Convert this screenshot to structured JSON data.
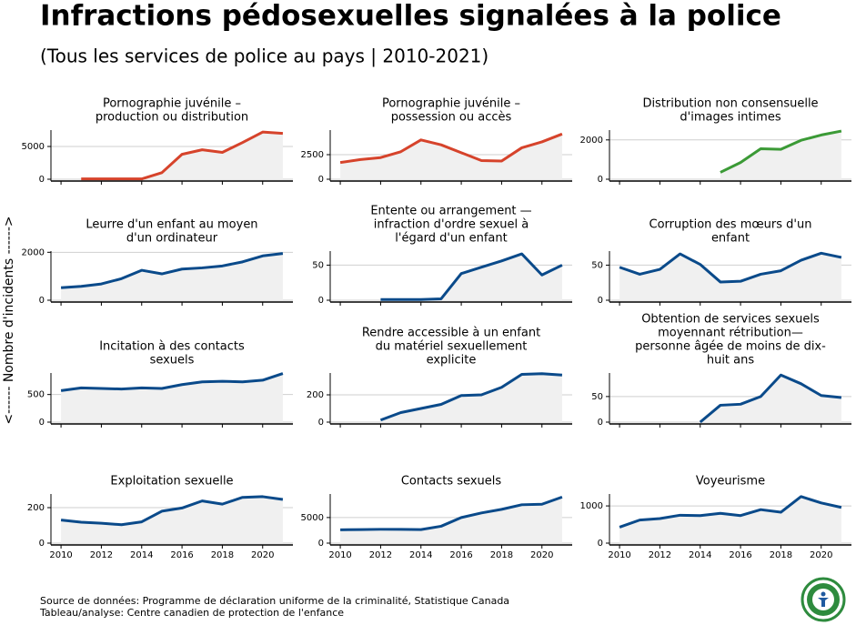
{
  "title": "Infractions pédosexuelles signalées à la police",
  "subtitle": "(Tous les services de police au pays | 2010-2021)",
  "y_label": "<------ Nombre d'incidents ------>",
  "source": [
    "Source de données: Programme de déclaration uniforme de la criminalité, Statistique Canada",
    "Tableau/analyse: Centre canadien de protection de l'enfance"
  ],
  "chart_data": [
    {
      "type": "line",
      "title": [
        "Pornographie juvénile –",
        "production ou distribution"
      ],
      "color": "#d6432b",
      "x": [
        2010,
        2011,
        2012,
        2013,
        2014,
        2015,
        2016,
        2017,
        2018,
        2019,
        2020,
        2021
      ],
      "values": [
        null,
        50,
        50,
        50,
        50,
        1000,
        3800,
        4500,
        4100,
        5600,
        7200,
        7000
      ],
      "xlim": [
        2009.5,
        2021.5
      ],
      "xticks": [
        2010,
        2012,
        2014,
        2016,
        2018,
        2020
      ],
      "ylim": [
        0,
        7500
      ],
      "yticks": [
        0,
        5000
      ],
      "grid": true
    },
    {
      "type": "line",
      "title": [
        "Pornographie juvénile –",
        "possession ou accès"
      ],
      "color": "#d6432b",
      "x": [
        2010,
        2011,
        2012,
        2013,
        2014,
        2015,
        2016,
        2017,
        2018,
        2019,
        2020,
        2021
      ],
      "values": [
        1700,
        2000,
        2200,
        2800,
        4000,
        3500,
        2700,
        1900,
        1850,
        3200,
        3800,
        4600
      ],
      "xlim": [
        2009.5,
        2021.5
      ],
      "xticks": [
        2010,
        2012,
        2014,
        2016,
        2018,
        2020
      ],
      "ylim": [
        0,
        5000
      ],
      "yticks": [
        0,
        2500
      ],
      "grid": true
    },
    {
      "type": "line",
      "title": [
        "Distribution non consensuelle",
        "d'images intimes"
      ],
      "color": "#3b9a36",
      "x": [
        2010,
        2011,
        2012,
        2013,
        2014,
        2015,
        2016,
        2017,
        2018,
        2019,
        2020,
        2021
      ],
      "values": [
        null,
        null,
        null,
        null,
        null,
        350,
        850,
        1550,
        1520,
        1980,
        2250,
        2450
      ],
      "xlim": [
        2009.5,
        2021.5
      ],
      "xticks": [
        2010,
        2012,
        2014,
        2016,
        2018,
        2020
      ],
      "ylim": [
        0,
        2500
      ],
      "yticks": [
        0,
        2000
      ],
      "grid": true
    },
    {
      "type": "line",
      "title": [
        "Leurre d'un enfant au moyen",
        "d'un ordinateur"
      ],
      "color": "#0a4a8a",
      "x": [
        2010,
        2011,
        2012,
        2013,
        2014,
        2015,
        2016,
        2017,
        2018,
        2019,
        2020,
        2021
      ],
      "values": [
        520,
        580,
        680,
        900,
        1250,
        1100,
        1300,
        1350,
        1430,
        1600,
        1850,
        1950
      ],
      "xlim": [
        2009.5,
        2021.5
      ],
      "xticks": [
        2010,
        2012,
        2014,
        2016,
        2018,
        2020
      ],
      "ylim": [
        0,
        2050
      ],
      "yticks": [
        0,
        2000
      ],
      "grid": true
    },
    {
      "type": "line",
      "title": [
        "Entente ou arrangement —",
        "infraction d'ordre sexuel à",
        "l'égard d'un enfant"
      ],
      "color": "#0a4a8a",
      "x": [
        2010,
        2011,
        2012,
        2013,
        2014,
        2015,
        2016,
        2017,
        2018,
        2019,
        2020,
        2021
      ],
      "values": [
        null,
        null,
        1,
        1,
        1,
        2,
        38,
        47,
        56,
        66,
        36,
        50
      ],
      "xlim": [
        2009.5,
        2021.5
      ],
      "xticks": [
        2010,
        2012,
        2014,
        2016,
        2018,
        2020
      ],
      "ylim": [
        0,
        70
      ],
      "yticks": [
        0,
        50
      ],
      "grid": true
    },
    {
      "type": "line",
      "title": [
        "Corruption des mœurs d'un",
        "enfant"
      ],
      "color": "#0a4a8a",
      "x": [
        2010,
        2011,
        2012,
        2013,
        2014,
        2015,
        2016,
        2017,
        2018,
        2019,
        2020,
        2021
      ],
      "values": [
        47,
        37,
        44,
        66,
        51,
        26,
        27,
        37,
        42,
        57,
        67,
        61
      ],
      "xlim": [
        2009.5,
        2021.5
      ],
      "xticks": [
        2010,
        2012,
        2014,
        2016,
        2018,
        2020
      ],
      "ylim": [
        0,
        70
      ],
      "yticks": [
        0,
        50
      ],
      "grid": true
    },
    {
      "type": "line",
      "title": [
        "Incitation à des contacts",
        "sexuels"
      ],
      "color": "#0a4a8a",
      "x": [
        2010,
        2011,
        2012,
        2013,
        2014,
        2015,
        2016,
        2017,
        2018,
        2019,
        2020,
        2021
      ],
      "values": [
        570,
        620,
        610,
        600,
        620,
        610,
        680,
        730,
        740,
        730,
        760,
        880
      ],
      "xlim": [
        2009.5,
        2021.5
      ],
      "xticks": [
        2010,
        2012,
        2014,
        2016,
        2018,
        2020
      ],
      "ylim": [
        0,
        890
      ],
      "yticks": [
        0,
        500
      ],
      "grid": true
    },
    {
      "type": "line",
      "title": [
        "Rendre accessible à un enfant",
        "du matériel sexuellement",
        "explicite"
      ],
      "color": "#0a4a8a",
      "x": [
        2010,
        2011,
        2012,
        2013,
        2014,
        2015,
        2016,
        2017,
        2018,
        2019,
        2020,
        2021
      ],
      "values": [
        null,
        null,
        15,
        70,
        100,
        130,
        195,
        200,
        255,
        350,
        355,
        345
      ],
      "xlim": [
        2009.5,
        2021.5
      ],
      "xticks": [
        2010,
        2012,
        2014,
        2016,
        2018,
        2020
      ],
      "ylim": [
        0,
        360
      ],
      "yticks": [
        0,
        200
      ],
      "grid": true
    },
    {
      "type": "line",
      "title": [
        "Obtention de services sexuels",
        "moyennant rétribution—",
        "personne âgée de moins de dix-",
        "huit ans"
      ],
      "color": "#0a4a8a",
      "x": [
        2010,
        2011,
        2012,
        2013,
        2014,
        2015,
        2016,
        2017,
        2018,
        2019,
        2020,
        2021
      ],
      "values": [
        null,
        null,
        null,
        null,
        0,
        33,
        35,
        50,
        92,
        75,
        52,
        48
      ],
      "xlim": [
        2009.5,
        2021.5
      ],
      "xticks": [
        2010,
        2012,
        2014,
        2016,
        2018,
        2020
      ],
      "ylim": [
        0,
        96
      ],
      "yticks": [
        0,
        50
      ],
      "grid": true
    },
    {
      "type": "line",
      "title": [
        "Exploitation sexuelle"
      ],
      "color": "#0a4a8a",
      "x": [
        2010,
        2011,
        2012,
        2013,
        2014,
        2015,
        2016,
        2017,
        2018,
        2019,
        2020,
        2021
      ],
      "values": [
        130,
        118,
        112,
        104,
        120,
        180,
        198,
        238,
        220,
        258,
        262,
        246
      ],
      "xlim": [
        2009.5,
        2021.5
      ],
      "xticks": [
        2010,
        2012,
        2014,
        2016,
        2018,
        2020
      ],
      "ylim": [
        0,
        277
      ],
      "yticks": [
        0,
        200
      ],
      "grid": true
    },
    {
      "type": "line",
      "title": [
        "Contacts sexuels"
      ],
      "color": "#0a4a8a",
      "x": [
        2010,
        2011,
        2012,
        2013,
        2014,
        2015,
        2016,
        2017,
        2018,
        2019,
        2020,
        2021
      ],
      "values": [
        2600,
        2650,
        2700,
        2700,
        2650,
        3300,
        5000,
        5900,
        6600,
        7500,
        7600,
        9000
      ],
      "xlim": [
        2009.5,
        2021.5
      ],
      "xticks": [
        2010,
        2012,
        2014,
        2016,
        2018,
        2020
      ],
      "ylim": [
        0,
        9600
      ],
      "yticks": [
        0,
        5000
      ],
      "grid": true
    },
    {
      "type": "line",
      "title": [
        "Voyeurisme"
      ],
      "color": "#0a4a8a",
      "x": [
        2010,
        2011,
        2012,
        2013,
        2014,
        2015,
        2016,
        2017,
        2018,
        2019,
        2020,
        2021
      ],
      "values": [
        430,
        620,
        660,
        750,
        740,
        800,
        740,
        900,
        830,
        1250,
        1080,
        960
      ],
      "xlim": [
        2009.5,
        2021.5
      ],
      "xticks": [
        2010,
        2012,
        2014,
        2016,
        2018,
        2020
      ],
      "ylim": [
        0,
        1320
      ],
      "yticks": [
        0,
        1000
      ],
      "grid": true
    }
  ]
}
